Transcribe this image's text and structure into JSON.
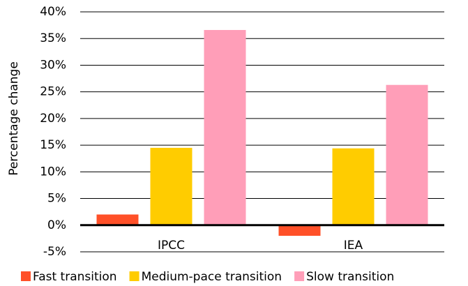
{
  "chart_data": {
    "type": "bar",
    "y_label": "Percentage change",
    "categories": [
      "IPCC",
      "IEA"
    ],
    "series": [
      {
        "name": "Fast transition",
        "color": "#ff5028",
        "values": [
          2.0,
          -2.0
        ]
      },
      {
        "name": "Medium-pace transition",
        "color": "#ffcc00",
        "values": [
          14.5,
          14.4
        ]
      },
      {
        "name": "Slow transition",
        "color": "#ff9eb8",
        "values": [
          36.6,
          26.3
        ]
      }
    ],
    "ylim": [
      -5,
      40
    ],
    "yticks": [
      {
        "value": -5,
        "label": "-5%"
      },
      {
        "value": 0,
        "label": "0%"
      },
      {
        "value": 5,
        "label": "5%"
      },
      {
        "value": 10,
        "label": "10%"
      },
      {
        "value": 15,
        "label": "15%"
      },
      {
        "value": 20,
        "label": "20%"
      },
      {
        "value": 25,
        "label": "25%"
      },
      {
        "value": 30,
        "label": "30%"
      },
      {
        "value": 35,
        "label": "35%"
      },
      {
        "value": 40,
        "label": "40%"
      }
    ],
    "grid": true
  }
}
